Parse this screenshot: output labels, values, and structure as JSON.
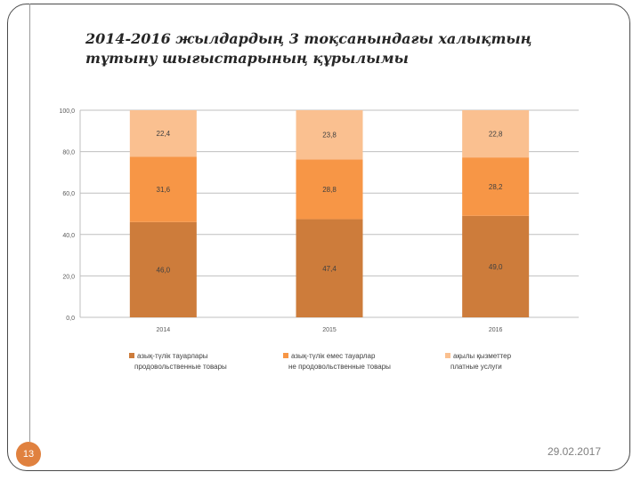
{
  "slide": {
    "title_lines": [
      "2014-2016 жылдардың 3 тоқсанындағы халықтың",
      "тұтыну шығыстарының құрылымы"
    ],
    "page_number": "13",
    "date": "29.02.2017"
  },
  "colors": {
    "series": [
      "#cd7c3b",
      "#f79646",
      "#fac090"
    ],
    "grid": "#bfbfbf",
    "axis_text": "#595959",
    "label_text": "#404040"
  },
  "chart_data": {
    "type": "bar",
    "stacked": true,
    "categories": [
      "2014",
      "2015",
      "2016"
    ],
    "series": [
      {
        "name": "азық-түлік тауарлары / продовольственные товары",
        "legend_lines": [
          "азық-түлік тауарлары",
          "продовольственные товары"
        ],
        "values": [
          46.0,
          47.4,
          49.0
        ],
        "labels": [
          "46,0",
          "47,4",
          "49,0"
        ]
      },
      {
        "name": "азық-түлік емес тауарлар / не продовольственные товары",
        "legend_lines": [
          "азық-түлік емес тауарлар",
          "не продовольственные товары"
        ],
        "values": [
          31.6,
          28.8,
          28.2
        ],
        "labels": [
          "31,6",
          "28,8",
          "28,2"
        ]
      },
      {
        "name": "ақылы қызметтер / платные услуги",
        "legend_lines": [
          "ақылы қызметтер",
          "платные услуги"
        ],
        "values": [
          22.4,
          23.8,
          22.8
        ],
        "labels": [
          "22,4",
          "23,8",
          "22,8"
        ]
      }
    ],
    "yticks": [
      "0,0",
      "20,0",
      "40,0",
      "60,0",
      "80,0",
      "100,0"
    ],
    "ylim": [
      0,
      100
    ],
    "grid": true,
    "legend_position": "bottom",
    "title": "",
    "xlabel": "",
    "ylabel": ""
  }
}
